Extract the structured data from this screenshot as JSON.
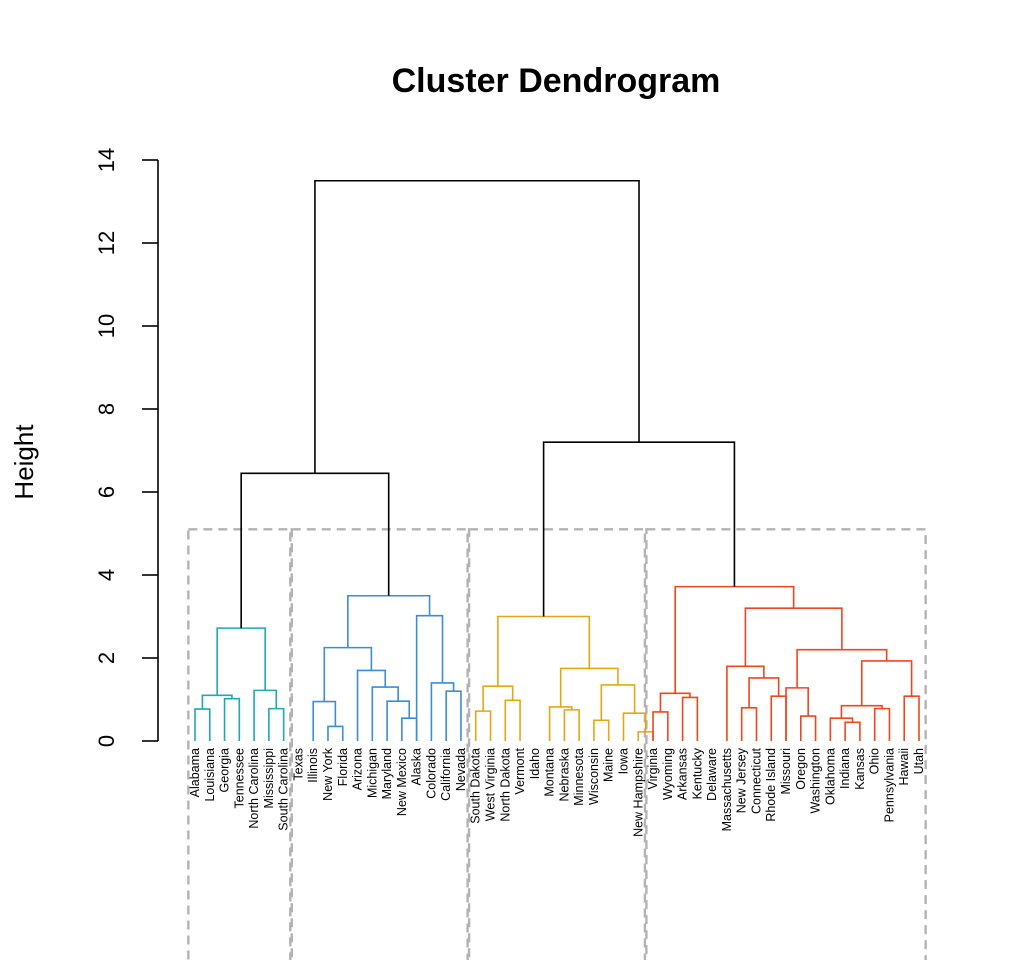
{
  "chart_data": {
    "type": "dendrogram",
    "title": "Cluster Dendrogram",
    "xlabel": "",
    "ylabel": "Height",
    "ylim": [
      0,
      14
    ],
    "yticks": [
      0,
      2,
      4,
      6,
      8,
      10,
      12,
      14
    ],
    "cut_height": 5.1,
    "leaves": [
      "Alabama",
      "Louisiana",
      "Georgia",
      "Tennessee",
      "North Carolina",
      "Mississippi",
      "South Carolina",
      "Texas",
      "Illinois",
      "New York",
      "Florida",
      "Arizona",
      "Michigan",
      "Maryland",
      "New Mexico",
      "Alaska",
      "Colorado",
      "California",
      "Nevada",
      "South Dakota",
      "West Virginia",
      "North Dakota",
      "Vermont",
      "Idaho",
      "Montana",
      "Nebraska",
      "Minnesota",
      "Wisconsin",
      "Maine",
      "Iowa",
      "New Hampshire",
      "Virginia",
      "Wyoming",
      "Arkansas",
      "Kentucky",
      "Delaware",
      "Massachusetts",
      "New Jersey",
      "Connecticut",
      "Rhode Island",
      "Missouri",
      "Oregon",
      "Washington",
      "Oklahoma",
      "Indiana",
      "Kansas",
      "Ohio",
      "Pennsylvania",
      "Hawaii",
      "Utah"
    ],
    "clusters": [
      {
        "id": 1,
        "color": "#1FA8B0",
        "leaves": [
          0,
          6
        ]
      },
      {
        "id": 2,
        "color": "#3A8DD6",
        "leaves": [
          7,
          18
        ]
      },
      {
        "id": 3,
        "color": "#E5A614",
        "leaves": [
          19,
          30
        ]
      },
      {
        "id": 4,
        "color": "#F0461E",
        "leaves": [
          31,
          49
        ]
      }
    ],
    "merges": [
      {
        "left": "L0",
        "right": "L1",
        "height": 0.77,
        "cluster": 1
      },
      {
        "left": "L2",
        "right": "L3",
        "height": 1.02,
        "cluster": 1
      },
      {
        "left": "M0",
        "right": "M1",
        "height": 1.1,
        "cluster": 1
      },
      {
        "left": "L5",
        "right": "L6",
        "height": 0.78,
        "cluster": 1
      },
      {
        "left": "L4",
        "right": "M3",
        "height": 1.22,
        "cluster": 1
      },
      {
        "left": "M2",
        "right": "M4",
        "height": 2.72,
        "cluster": 1
      },
      {
        "left": "L9",
        "right": "L10",
        "height": 0.35,
        "cluster": 2
      },
      {
        "left": "L8",
        "right": "M6",
        "height": 0.95,
        "cluster": 2
      },
      {
        "left": "L14",
        "right": "L15",
        "height": 0.55,
        "cluster": 2
      },
      {
        "left": "L13",
        "right": "M8",
        "height": 0.96,
        "cluster": 2
      },
      {
        "left": "L12",
        "right": "M9",
        "height": 1.3,
        "cluster": 2
      },
      {
        "left": "L11",
        "right": "M10",
        "height": 1.7,
        "cluster": 2
      },
      {
        "left": "M7",
        "right": "M11",
        "height": 2.25,
        "cluster": 2
      },
      {
        "left": "L17",
        "right": "L18",
        "height": 1.2,
        "cluster": 2
      },
      {
        "left": "L16",
        "right": "M13",
        "height": 1.4,
        "cluster": 2
      },
      {
        "left": "L15",
        "right": "M14",
        "height": 3.02,
        "cluster": 2
      },
      {
        "left": "M12",
        "right": "M15",
        "height": 3.5,
        "cluster": 2
      },
      {
        "left": "M5",
        "right": "M16",
        "height": 6.45,
        "cluster": 0
      },
      {
        "left": "L19",
        "right": "L20",
        "height": 0.72,
        "cluster": 3
      },
      {
        "left": "L21",
        "right": "L22",
        "height": 0.98,
        "cluster": 3
      },
      {
        "left": "M18",
        "right": "M19",
        "height": 1.32,
        "cluster": 3
      },
      {
        "left": "L25",
        "right": "L26",
        "height": 0.75,
        "cluster": 3
      },
      {
        "left": "L24",
        "right": "M21",
        "height": 0.82,
        "cluster": 3
      },
      {
        "left": "L27",
        "right": "L28",
        "height": 0.5,
        "cluster": 3
      },
      {
        "left": "L30",
        "right": "L31",
        "height": 0.22,
        "cluster": 3
      },
      {
        "left": "L29",
        "right": "M24",
        "height": 0.67,
        "cluster": 3
      },
      {
        "left": "M23",
        "right": "M25",
        "height": 1.35,
        "cluster": 3
      },
      {
        "left": "M22",
        "right": "M26",
        "height": 1.75,
        "cluster": 3
      },
      {
        "left": "M20",
        "right": "M27",
        "height": 3.0,
        "cluster": 3
      },
      {
        "left": "L31",
        "right": "L32",
        "height": 0.7,
        "cluster": 4
      },
      {
        "left": "L33",
        "right": "L34",
        "height": 1.05,
        "cluster": 4
      },
      {
        "left": "M29",
        "right": "M30",
        "height": 1.15,
        "cluster": 4
      },
      {
        "left": "L37",
        "right": "L38",
        "height": 0.8,
        "cluster": 4
      },
      {
        "left": "L39",
        "right": "L40",
        "height": 1.08,
        "cluster": 4
      },
      {
        "left": "M32",
        "right": "M33",
        "height": 1.52,
        "cluster": 4
      },
      {
        "left": "L36",
        "right": "M34",
        "height": 1.8,
        "cluster": 4
      },
      {
        "left": "L41",
        "right": "L42",
        "height": 0.6,
        "cluster": 4
      },
      {
        "left": "L40",
        "right": "M36",
        "height": 1.28,
        "cluster": 4
      },
      {
        "left": "L44",
        "right": "L45",
        "height": 0.45,
        "cluster": 4
      },
      {
        "left": "L43",
        "right": "M38",
        "height": 0.55,
        "cluster": 4
      },
      {
        "left": "L46",
        "right": "L47",
        "height": 0.78,
        "cluster": 4
      },
      {
        "left": "M39",
        "right": "M40",
        "height": 0.85,
        "cluster": 4
      },
      {
        "left": "L48",
        "right": "L49",
        "height": 1.08,
        "cluster": 4
      },
      {
        "left": "M41",
        "right": "M42",
        "height": 1.93,
        "cluster": 4
      },
      {
        "left": "M37",
        "right": "M43",
        "height": 2.2,
        "cluster": 4
      },
      {
        "left": "M35",
        "right": "M44",
        "height": 3.2,
        "cluster": 4
      },
      {
        "left": "M31",
        "right": "M45",
        "height": 3.72,
        "cluster": 4
      },
      {
        "left": "M28",
        "right": "M46",
        "height": 7.2,
        "cluster": 0
      },
      {
        "left": "M17",
        "right": "M47",
        "height": 13.5,
        "cluster": 0
      }
    ]
  }
}
